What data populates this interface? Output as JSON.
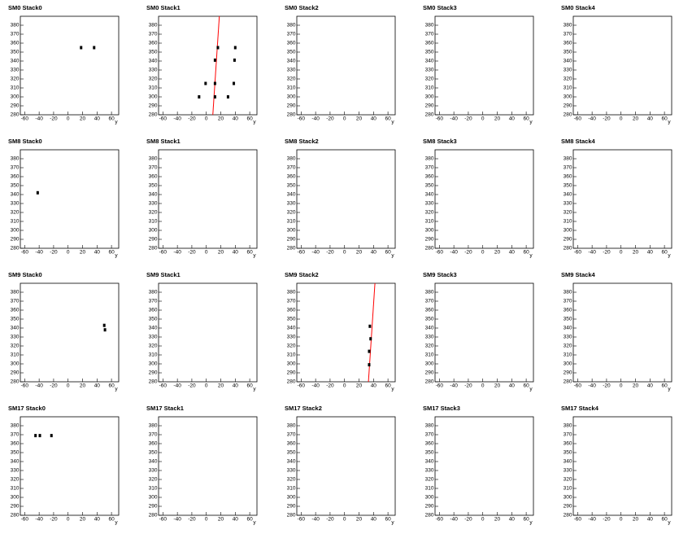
{
  "chart_data": [
    {
      "type": "scatter",
      "title": "SM0 Stack0",
      "xlabel": "y",
      "xlim": [
        -66,
        70
      ],
      "ylim": [
        280,
        390
      ],
      "xticks": [
        -60,
        -40,
        -20,
        0,
        20,
        40,
        60
      ],
      "yticks": [
        280,
        290,
        300,
        310,
        320,
        330,
        340,
        350,
        360,
        370,
        380
      ],
      "color": "#000000",
      "x": [
        18,
        36
      ],
      "y": [
        355,
        355
      ]
    },
    {
      "type": "scatter",
      "title": "SM0 Stack1",
      "xlabel": "y",
      "xlim": [
        -66,
        70
      ],
      "ylim": [
        280,
        390
      ],
      "xticks": [
        -60,
        -40,
        -20,
        0,
        20,
        40,
        60
      ],
      "yticks": [
        280,
        290,
        300,
        310,
        320,
        330,
        340,
        350,
        360,
        370,
        380
      ],
      "color": "#000000",
      "x": [
        16,
        40,
        12,
        39,
        -1,
        12,
        38,
        -10,
        12,
        30
      ],
      "y": [
        355,
        355,
        341,
        341,
        315,
        315,
        315,
        300,
        300,
        300
      ],
      "line": {
        "color": "#ff0000",
        "x": [
          9,
          18
        ],
        "y": [
          280,
          390
        ]
      }
    },
    {
      "type": "scatter",
      "title": "SM0 Stack2",
      "xlabel": "y",
      "xlim": [
        -66,
        70
      ],
      "ylim": [
        280,
        390
      ],
      "xticks": [
        -60,
        -40,
        -20,
        0,
        20,
        40,
        60
      ],
      "yticks": [
        280,
        290,
        300,
        310,
        320,
        330,
        340,
        350,
        360,
        370,
        380
      ],
      "color": "#000000",
      "x": [],
      "y": []
    },
    {
      "type": "scatter",
      "title": "SM0 Stack3",
      "xlabel": "y",
      "xlim": [
        -66,
        70
      ],
      "ylim": [
        280,
        390
      ],
      "xticks": [
        -60,
        -40,
        -20,
        0,
        20,
        40,
        60
      ],
      "yticks": [
        280,
        290,
        300,
        310,
        320,
        330,
        340,
        350,
        360,
        370,
        380
      ],
      "color": "#000000",
      "x": [],
      "y": []
    },
    {
      "type": "scatter",
      "title": "SM0 Stack4",
      "xlabel": "y",
      "xlim": [
        -66,
        70
      ],
      "ylim": [
        280,
        390
      ],
      "xticks": [
        -60,
        -40,
        -20,
        0,
        20,
        40,
        60
      ],
      "yticks": [
        280,
        290,
        300,
        310,
        320,
        330,
        340,
        350,
        360,
        370,
        380
      ],
      "color": "#000000",
      "x": [],
      "y": []
    },
    {
      "type": "scatter",
      "title": "SM8 Stack0",
      "xlabel": "y",
      "xlim": [
        -66,
        70
      ],
      "ylim": [
        280,
        390
      ],
      "xticks": [
        -60,
        -40,
        -20,
        0,
        20,
        40,
        60
      ],
      "yticks": [
        280,
        290,
        300,
        310,
        320,
        330,
        340,
        350,
        360,
        370,
        380
      ],
      "color": "#000000",
      "x": [
        -42
      ],
      "y": [
        342
      ]
    },
    {
      "type": "scatter",
      "title": "SM8 Stack1",
      "xlabel": "y",
      "xlim": [
        -66,
        70
      ],
      "ylim": [
        280,
        390
      ],
      "xticks": [
        -60,
        -40,
        -20,
        0,
        20,
        40,
        60
      ],
      "yticks": [
        280,
        290,
        300,
        310,
        320,
        330,
        340,
        350,
        360,
        370,
        380
      ],
      "color": "#000000",
      "x": [],
      "y": []
    },
    {
      "type": "scatter",
      "title": "SM8 Stack2",
      "xlabel": "y",
      "xlim": [
        -66,
        70
      ],
      "ylim": [
        280,
        390
      ],
      "xticks": [
        -60,
        -40,
        -20,
        0,
        20,
        40,
        60
      ],
      "yticks": [
        280,
        290,
        300,
        310,
        320,
        330,
        340,
        350,
        360,
        370,
        380
      ],
      "color": "#000000",
      "x": [],
      "y": []
    },
    {
      "type": "scatter",
      "title": "SM8 Stack3",
      "xlabel": "y",
      "xlim": [
        -66,
        70
      ],
      "ylim": [
        280,
        390
      ],
      "xticks": [
        -60,
        -40,
        -20,
        0,
        20,
        40,
        60
      ],
      "yticks": [
        280,
        290,
        300,
        310,
        320,
        330,
        340,
        350,
        360,
        370,
        380
      ],
      "color": "#000000",
      "x": [],
      "y": []
    },
    {
      "type": "scatter",
      "title": "SM8 Stack4",
      "xlabel": "y",
      "xlim": [
        -66,
        70
      ],
      "ylim": [
        280,
        390
      ],
      "xticks": [
        -60,
        -40,
        -20,
        0,
        20,
        40,
        60
      ],
      "yticks": [
        280,
        290,
        300,
        310,
        320,
        330,
        340,
        350,
        360,
        370,
        380
      ],
      "color": "#000000",
      "x": [],
      "y": []
    },
    {
      "type": "scatter",
      "title": "SM9 Stack0",
      "xlabel": "y",
      "xlim": [
        -66,
        70
      ],
      "ylim": [
        280,
        390
      ],
      "xticks": [
        -60,
        -40,
        -20,
        0,
        20,
        40,
        60
      ],
      "yticks": [
        280,
        290,
        300,
        310,
        320,
        330,
        340,
        350,
        360,
        370,
        380
      ],
      "color": "#000000",
      "x": [
        50,
        51
      ],
      "y": [
        343,
        338
      ]
    },
    {
      "type": "scatter",
      "title": "SM9 Stack1",
      "xlabel": "y",
      "xlim": [
        -66,
        70
      ],
      "ylim": [
        280,
        390
      ],
      "xticks": [
        -60,
        -40,
        -20,
        0,
        20,
        40,
        60
      ],
      "yticks": [
        280,
        290,
        300,
        310,
        320,
        330,
        340,
        350,
        360,
        370,
        380
      ],
      "color": "#000000",
      "x": [],
      "y": []
    },
    {
      "type": "scatter",
      "title": "SM9 Stack2",
      "xlabel": "y",
      "xlim": [
        -66,
        70
      ],
      "ylim": [
        280,
        390
      ],
      "xticks": [
        -60,
        -40,
        -20,
        0,
        20,
        40,
        60
      ],
      "yticks": [
        280,
        290,
        300,
        310,
        320,
        330,
        340,
        350,
        360,
        370,
        380
      ],
      "color": "#000000",
      "x": [
        35,
        36,
        34,
        34
      ],
      "y": [
        342,
        328,
        314,
        299
      ],
      "line": {
        "color": "#ff0000",
        "x": [
          33,
          42
        ],
        "y": [
          280,
          390
        ]
      }
    },
    {
      "type": "scatter",
      "title": "SM9 Stack3",
      "xlabel": "y",
      "xlim": [
        -66,
        70
      ],
      "ylim": [
        280,
        390
      ],
      "xticks": [
        -60,
        -40,
        -20,
        0,
        20,
        40,
        60
      ],
      "yticks": [
        280,
        290,
        300,
        310,
        320,
        330,
        340,
        350,
        360,
        370,
        380
      ],
      "color": "#000000",
      "x": [],
      "y": []
    },
    {
      "type": "scatter",
      "title": "SM9 Stack4",
      "xlabel": "y",
      "xlim": [
        -66,
        70
      ],
      "ylim": [
        280,
        390
      ],
      "xticks": [
        -60,
        -40,
        -20,
        0,
        20,
        40,
        60
      ],
      "yticks": [
        280,
        290,
        300,
        310,
        320,
        330,
        340,
        350,
        360,
        370,
        380
      ],
      "color": "#000000",
      "x": [],
      "y": []
    },
    {
      "type": "scatter",
      "title": "SM17 Stack0",
      "xlabel": "y",
      "xlim": [
        -66,
        70
      ],
      "ylim": [
        280,
        390
      ],
      "xticks": [
        -60,
        -40,
        -20,
        0,
        20,
        40,
        60
      ],
      "yticks": [
        280,
        290,
        300,
        310,
        320,
        330,
        340,
        350,
        360,
        370,
        380
      ],
      "color": "#000000",
      "x": [
        -45,
        -39,
        -23
      ],
      "y": [
        369,
        369,
        369
      ]
    },
    {
      "type": "scatter",
      "title": "SM17 Stack1",
      "xlabel": "y",
      "xlim": [
        -66,
        70
      ],
      "ylim": [
        280,
        390
      ],
      "xticks": [
        -60,
        -40,
        -20,
        0,
        20,
        40,
        60
      ],
      "yticks": [
        280,
        290,
        300,
        310,
        320,
        330,
        340,
        350,
        360,
        370,
        380
      ],
      "color": "#000000",
      "x": [],
      "y": []
    },
    {
      "type": "scatter",
      "title": "SM17 Stack2",
      "xlabel": "y",
      "xlim": [
        -66,
        70
      ],
      "ylim": [
        280,
        390
      ],
      "xticks": [
        -60,
        -40,
        -20,
        0,
        20,
        40,
        60
      ],
      "yticks": [
        280,
        290,
        300,
        310,
        320,
        330,
        340,
        350,
        360,
        370,
        380
      ],
      "color": "#000000",
      "x": [],
      "y": []
    },
    {
      "type": "scatter",
      "title": "SM17 Stack3",
      "xlabel": "y",
      "xlim": [
        -66,
        70
      ],
      "ylim": [
        280,
        390
      ],
      "xticks": [
        -60,
        -40,
        -20,
        0,
        20,
        40,
        60
      ],
      "yticks": [
        280,
        290,
        300,
        310,
        320,
        330,
        340,
        350,
        360,
        370,
        380
      ],
      "color": "#000000",
      "x": [],
      "y": []
    },
    {
      "type": "scatter",
      "title": "SM17 Stack4",
      "xlabel": "y",
      "xlim": [
        -66,
        70
      ],
      "ylim": [
        280,
        390
      ],
      "xticks": [
        -60,
        -40,
        -20,
        0,
        20,
        40,
        60
      ],
      "yticks": [
        280,
        290,
        300,
        310,
        320,
        330,
        340,
        350,
        360,
        370,
        380
      ],
      "color": "#000000",
      "x": [],
      "y": []
    }
  ]
}
